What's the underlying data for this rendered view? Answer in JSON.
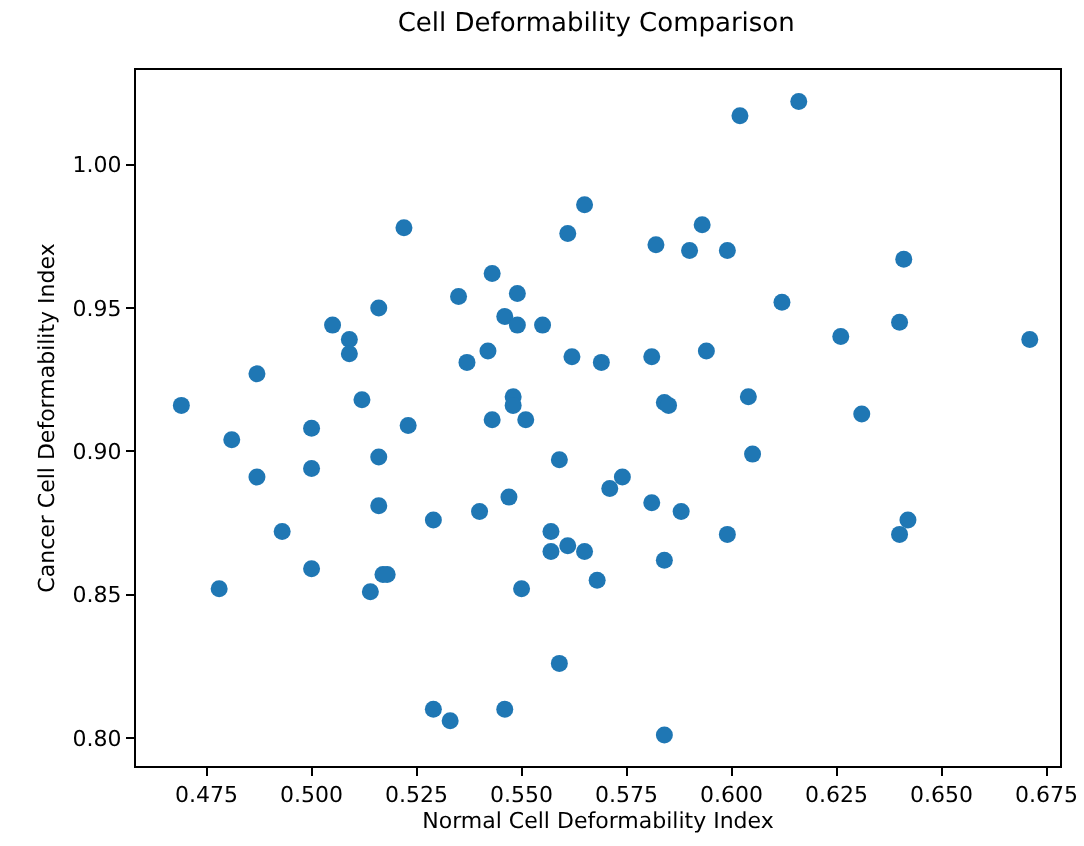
{
  "chart_data": {
    "type": "scatter",
    "title": "Cell Deformability Comparison",
    "xlabel": "Normal Cell Deformability Index",
    "ylabel": "Cancer Cell Deformability Index",
    "x": [
      0.469,
      0.487,
      0.505,
      0.509,
      0.509,
      0.516,
      0.522,
      0.512,
      0.535,
      0.543,
      0.549,
      0.546,
      0.549,
      0.555,
      0.542,
      0.537,
      0.561,
      0.565,
      0.562,
      0.569,
      0.548,
      0.548,
      0.602,
      0.616,
      0.593,
      0.582,
      0.59,
      0.599,
      0.612,
      0.626,
      0.64,
      0.671,
      0.641,
      0.581,
      0.594,
      0.584,
      0.585,
      0.604,
      0.631,
      0.481,
      0.5,
      0.523,
      0.543,
      0.551,
      0.487,
      0.5,
      0.516,
      0.559,
      0.571,
      0.574,
      0.516,
      0.529,
      0.54,
      0.547,
      0.493,
      0.557,
      0.557,
      0.561,
      0.565,
      0.568,
      0.5,
      0.478,
      0.514,
      0.517,
      0.518,
      0.55,
      0.559,
      0.529,
      0.533,
      0.546,
      0.605,
      0.581,
      0.588,
      0.599,
      0.642,
      0.64,
      0.584,
      0.584
    ],
    "values": [
      0.916,
      0.927,
      0.944,
      0.939,
      0.934,
      0.95,
      0.978,
      0.918,
      0.954,
      0.962,
      0.955,
      0.947,
      0.944,
      0.944,
      0.935,
      0.931,
      0.976,
      0.986,
      0.933,
      0.931,
      0.919,
      0.916,
      1.017,
      1.022,
      0.979,
      0.972,
      0.97,
      0.97,
      0.952,
      0.94,
      0.945,
      0.939,
      0.967,
      0.933,
      0.935,
      0.917,
      0.916,
      0.919,
      0.913,
      0.904,
      0.908,
      0.909,
      0.911,
      0.911,
      0.891,
      0.894,
      0.898,
      0.897,
      0.887,
      0.891,
      0.881,
      0.876,
      0.879,
      0.884,
      0.872,
      0.872,
      0.865,
      0.867,
      0.865,
      0.855,
      0.859,
      0.852,
      0.851,
      0.857,
      0.857,
      0.852,
      0.826,
      0.81,
      0.806,
      0.81,
      0.899,
      0.882,
      0.879,
      0.871,
      0.876,
      0.871,
      0.862,
      0.801
    ],
    "color": "#1f77b4",
    "marker": "circle",
    "grid": false,
    "xlim": [
      0.4582,
      0.6782
    ],
    "ylim": [
      0.7902,
      1.033
    ],
    "xticks": [
      0.475,
      {
        "value": 0.5,
        "label": "0.500"
      },
      0.525,
      {
        "value": 0.55,
        "label": "0.550"
      },
      0.575,
      {
        "value": 0.6,
        "label": "0.600"
      },
      0.625,
      {
        "value": 0.65,
        "label": "0.650"
      },
      0.675
    ],
    "yticks": [
      {
        "value": 0.8,
        "label": "0.80"
      },
      0.85,
      {
        "value": 0.9,
        "label": "0.90"
      },
      0.95,
      {
        "value": 1,
        "label": "1.00"
      }
    ]
  }
}
